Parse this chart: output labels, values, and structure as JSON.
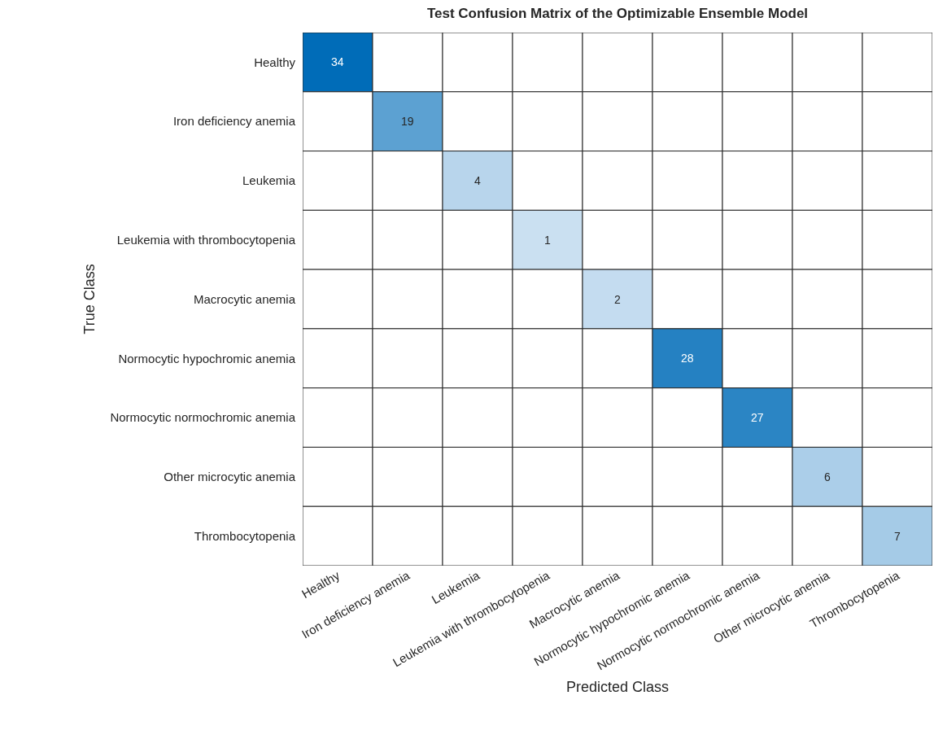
{
  "chart_data": {
    "type": "heatmap",
    "title": "Test Confusion Matrix of the Optimizable Ensemble Model",
    "xlabel": "Predicted Class",
    "ylabel": "True Class",
    "categories": [
      "Healthy",
      "Iron deficiency anemia",
      "Leukemia",
      "Leukemia with thrombocytopenia",
      "Macrocytic anemia",
      "Normocytic hypochromic anemia",
      "Normocytic normochromic anemia",
      "Other microcytic anemia",
      "Thrombocytopenia"
    ],
    "y_categories": [
      "Healthy",
      "Iron deficiency anemia",
      "Leukemia",
      "Leukemia with thrombocytopenia",
      "Macrocytic anemia",
      "Normocytic hypochromic anemia",
      "Normocytic normochromic anemia",
      "Other microcytic anemia",
      "Thrombocytopenia"
    ],
    "cells": [
      [
        34,
        null,
        null,
        null,
        null,
        null,
        null,
        null,
        null
      ],
      [
        null,
        19,
        null,
        null,
        null,
        null,
        null,
        null,
        null
      ],
      [
        null,
        null,
        4,
        null,
        null,
        null,
        null,
        null,
        null
      ],
      [
        null,
        null,
        null,
        1,
        null,
        null,
        null,
        null,
        null
      ],
      [
        null,
        null,
        null,
        null,
        2,
        null,
        null,
        null,
        null
      ],
      [
        null,
        null,
        null,
        null,
        null,
        28,
        null,
        null,
        null
      ],
      [
        null,
        null,
        null,
        null,
        null,
        null,
        27,
        null,
        null
      ],
      [
        null,
        null,
        null,
        null,
        null,
        null,
        null,
        6,
        null
      ],
      [
        null,
        null,
        null,
        null,
        null,
        null,
        null,
        null,
        7
      ]
    ],
    "data_labels": true
  }
}
